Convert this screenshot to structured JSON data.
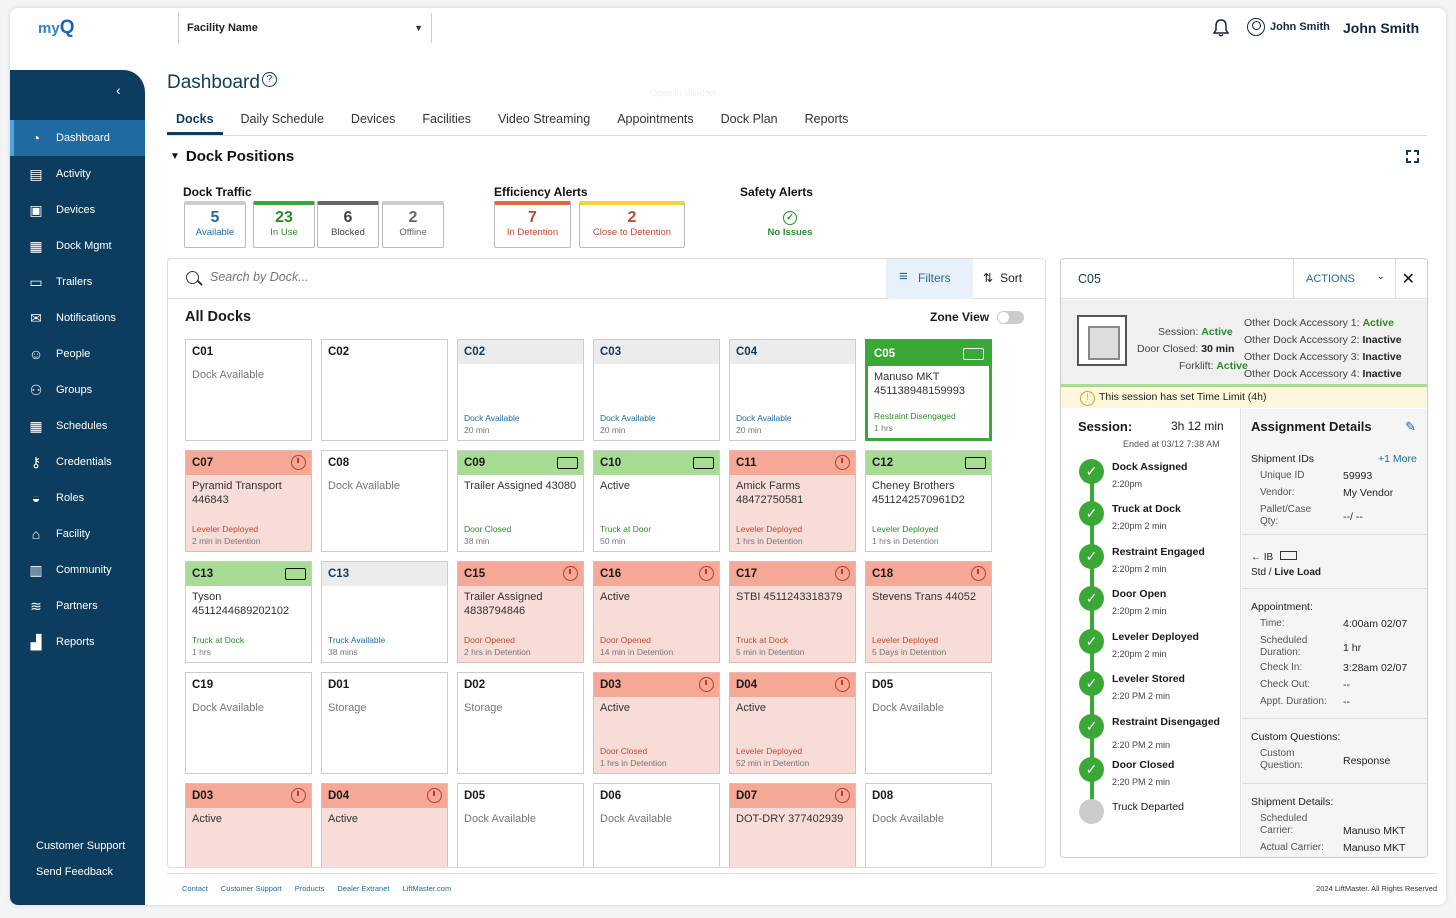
{
  "header": {
    "logo_text": "my",
    "logo_q": "Q",
    "facility": "Facility Name",
    "user_short": "John Smith",
    "user_name": "John Smith"
  },
  "sidebar": {
    "items": [
      {
        "label": "Dashboard",
        "icon": "gauge-icon"
      },
      {
        "label": "Activity",
        "icon": "document-icon"
      },
      {
        "label": "Devices",
        "icon": "device-icon"
      },
      {
        "label": "Dock Mgmt",
        "icon": "dock-icon"
      },
      {
        "label": "Trailers",
        "icon": "trailer-icon"
      },
      {
        "label": "Notifications",
        "icon": "envelope-icon"
      },
      {
        "label": "People",
        "icon": "person-icon"
      },
      {
        "label": "Groups",
        "icon": "group-icon"
      },
      {
        "label": "Schedules",
        "icon": "calendar-icon"
      },
      {
        "label": "Credentials",
        "icon": "key-icon"
      },
      {
        "label": "Roles",
        "icon": "role-icon"
      },
      {
        "label": "Facility",
        "icon": "factory-icon"
      },
      {
        "label": "Community",
        "icon": "building-icon"
      },
      {
        "label": "Partners",
        "icon": "handshake-icon"
      },
      {
        "label": "Reports",
        "icon": "chart-icon"
      }
    ],
    "customer_support": "Customer Support",
    "send_feedback": "Send Feedback"
  },
  "page": {
    "title": "Dashboard",
    "help": "?",
    "ghost": "Open in Window",
    "tabs": [
      "Docks",
      "Daily Schedule",
      "Devices",
      "Facilities",
      "Video Streaming",
      "Appointments",
      "Dock Plan",
      "Reports"
    ],
    "section": "Dock Positions"
  },
  "traffic": {
    "label": "Dock Traffic",
    "available_n": "5",
    "available_l": "Available",
    "inuse_n": "23",
    "inuse_l": "In Use",
    "blocked_n": "6",
    "blocked_l": "Blocked",
    "offline_n": "2",
    "offline_l": "Offline"
  },
  "efficiency": {
    "label": "Efficiency Alerts",
    "detention_n": "7",
    "detention_l": "In Detention",
    "close_n": "2",
    "close_l": "Close to Detention"
  },
  "safety": {
    "label": "Safety Alerts",
    "status": "No Issues"
  },
  "grid": {
    "search_placeholder": "Search by Dock...",
    "filters": "Filters",
    "sort": "Sort",
    "title": "All Docks",
    "zone_view": "Zone View"
  },
  "docks": [
    {
      "id": "C01",
      "style": "plain",
      "body": "Dock Available",
      "foot": "",
      "sub": "",
      "icon": ""
    },
    {
      "id": "C02",
      "style": "plain",
      "body": "",
      "foot": "",
      "sub": "",
      "icon": ""
    },
    {
      "id": "C02",
      "style": "grey",
      "body": "",
      "foot": "Dock Available",
      "sub": "20 min",
      "icon": ""
    },
    {
      "id": "C03",
      "style": "grey",
      "body": "",
      "foot": "Dock Available",
      "sub": "20 min",
      "icon": ""
    },
    {
      "id": "C04",
      "style": "grey",
      "body": "",
      "foot": "Dock Available",
      "sub": "20 min",
      "icon": ""
    },
    {
      "id": "C05",
      "style": "sel",
      "body": "Manuso MKT 451138948159993",
      "foot": "Restraint Disengaged",
      "sub": "1 hrs",
      "icon": "truck"
    },
    {
      "id": "C07",
      "style": "red",
      "body": "Pyramid Transport 446843",
      "foot": "Leveler Deployed",
      "sub": "2 min in Detention",
      "icon": "clock"
    },
    {
      "id": "C08",
      "style": "plain",
      "body": "Dock Available",
      "foot": "",
      "sub": "",
      "icon": ""
    },
    {
      "id": "C09",
      "style": "green",
      "body": "Trailer Assigned 43080",
      "foot": "Door Closed",
      "sub": "38 min",
      "icon": "truck"
    },
    {
      "id": "C10",
      "style": "green",
      "body": "Active",
      "foot": "Truck at Door",
      "sub": "50 min",
      "icon": "truck"
    },
    {
      "id": "C11",
      "style": "red",
      "body": "Amick Farms 48472750581",
      "foot": "Leveler Deployed",
      "sub": "1 hrs in Detention",
      "icon": "clock"
    },
    {
      "id": "C12",
      "style": "green",
      "body": "Cheney Brothers 4511242570961D2",
      "foot": "Leveler Deployed",
      "sub": "1 hrs in Detention",
      "icon": "truck"
    },
    {
      "id": "C13",
      "style": "green",
      "body": "Tyson 4511244689202102",
      "foot": "Truck at Dock",
      "sub": "1 hrs",
      "icon": "truck"
    },
    {
      "id": "C13",
      "style": "grey",
      "body": "",
      "foot": "Truck Available",
      "sub": "38 mins",
      "icon": ""
    },
    {
      "id": "C15",
      "style": "red",
      "body": "Trailer Assigned 4838794846",
      "foot": "Door Opened",
      "sub": "2 hrs in Detention",
      "icon": "clock"
    },
    {
      "id": "C16",
      "style": "red",
      "body": "Active",
      "foot": "Door Opened",
      "sub": "14 min in Detention",
      "icon": "clock"
    },
    {
      "id": "C17",
      "style": "red",
      "body": "STBI 4511243318379",
      "foot": "Truck at Dock",
      "sub": "5 min in Detention",
      "icon": "clock"
    },
    {
      "id": "C18",
      "style": "red",
      "body": "Stevens Trans 44052",
      "foot": "Leveler Deployed",
      "sub": "5 Days in Detention",
      "icon": "clock"
    },
    {
      "id": "C19",
      "style": "plain",
      "body": "Dock Available",
      "foot": "",
      "sub": "",
      "icon": ""
    },
    {
      "id": "D01",
      "style": "plain",
      "body": "Storage",
      "foot": "",
      "sub": "",
      "icon": ""
    },
    {
      "id": "D02",
      "style": "plain",
      "body": "Storage",
      "foot": "",
      "sub": "",
      "icon": ""
    },
    {
      "id": "D03",
      "style": "red",
      "body": "Active",
      "foot": "Door Closed",
      "sub": "1 hrs in Detention",
      "icon": "clock"
    },
    {
      "id": "D04",
      "style": "red",
      "body": "Active",
      "foot": "Leveler Deployed",
      "sub": "52 min in Detention",
      "icon": "clock"
    },
    {
      "id": "D05",
      "style": "plain",
      "body": "Dock Available",
      "foot": "",
      "sub": "",
      "icon": ""
    },
    {
      "id": "D03",
      "style": "red",
      "body": "Active",
      "foot": "",
      "sub": "",
      "icon": "clock"
    },
    {
      "id": "D04",
      "style": "red",
      "body": "Active",
      "foot": "",
      "sub": "",
      "icon": "clock"
    },
    {
      "id": "D05",
      "style": "plain",
      "body": "Dock Available",
      "foot": "",
      "sub": "",
      "icon": ""
    },
    {
      "id": "D06",
      "style": "plain",
      "body": "Dock Available",
      "foot": "",
      "sub": "",
      "icon": ""
    },
    {
      "id": "D07",
      "style": "red",
      "body": "DOT-DRY 377402939",
      "foot": "",
      "sub": "",
      "icon": "clock"
    },
    {
      "id": "D08",
      "style": "plain",
      "body": "Dock Available",
      "foot": "",
      "sub": "",
      "icon": ""
    }
  ],
  "detail": {
    "dock_id": "C05",
    "actions": "ACTIONS",
    "session_label": "Session:",
    "session_value": "Active",
    "door_label": "Door Closed:",
    "door_value": "30 min",
    "forklift_label": "Forklift:",
    "forklift_value": "Active",
    "acc1_label": "Other Dock Accessory 1:",
    "acc1_value": "Active",
    "acc2_label": "Other Dock Accessory 2:",
    "acc2_value": "Inactive",
    "acc3_label": "Other Dock Accessory 3:",
    "acc3_value": "Inactive",
    "acc4_label": "Other Dock Accessory 4:",
    "acc4_value": "Inactive",
    "time_limit": "This session has set Time Limit (4h)",
    "session_h": "Session:",
    "session_dur": "3h 12 min",
    "session_end": "Ended at 03/12 7:38 AM",
    "steps": [
      {
        "t": "Dock Assigned",
        "s": "2:20pm",
        "done": true
      },
      {
        "t": "Truck at Dock",
        "s": "2:20pm  2 min",
        "done": true
      },
      {
        "t": "Restraint Engaged",
        "s": "2:20pm  2 min",
        "done": true
      },
      {
        "t": "Door Open",
        "s": "2:20pm  2 min",
        "done": true
      },
      {
        "t": "Leveler Deployed",
        "s": "2:20pm  2 min",
        "done": true
      },
      {
        "t": "Leveler Stored",
        "s": "2:20 PM  2 min",
        "done": true
      },
      {
        "t": "Restraint Disengaged",
        "s": "2:20 PM  2 min",
        "done": true
      },
      {
        "t": "Door Closed",
        "s": "2:20 PM  2 min",
        "done": true
      },
      {
        "t": "Truck Departed",
        "s": "",
        "done": false
      }
    ],
    "assign": {
      "title": "Assignment Details",
      "shipment_ids": "Shipment IDs",
      "more": "+1 More",
      "uid_l": "Unique ID",
      "uid_v": "59993",
      "vendor_l": "Vendor:",
      "vendor_v": "My Vendor",
      "pallet_l": "Pallet/Case Qty:",
      "pallet_v": "--/ --",
      "ib": "IB",
      "load": "Std / ",
      "load_b": "Live Load",
      "appt_h": "Appointment:",
      "time_l": "Time:",
      "time_v": "4:00am 02/07",
      "dur_l": "Scheduled Duration:",
      "dur_v": "1 hr",
      "checkin_l": "Check In:",
      "checkin_v": "3:28am 02/07",
      "checkout_l": "Check Out:",
      "checkout_v": "--",
      "apptdur_l": "Appt. Duration:",
      "apptdur_v": "--",
      "custom_h": "Custom Questions:",
      "cq_l": "Custom Question:",
      "cq_v": "Response",
      "ship_h": "Shipment Details:",
      "sched_carrier_l": "Scheduled Carrier:",
      "sched_carrier_v": "Manuso MKT",
      "actual_carrier_l": "Actual Carrier:",
      "actual_carrier_v": "Manuso MKT"
    }
  },
  "footer": {
    "links": [
      "Contact",
      "Customer Support",
      "Products",
      "Dealer Extranet",
      "LiftMaster.com"
    ],
    "copyright": "2024 LiftMaster. All Rights Reserved"
  }
}
